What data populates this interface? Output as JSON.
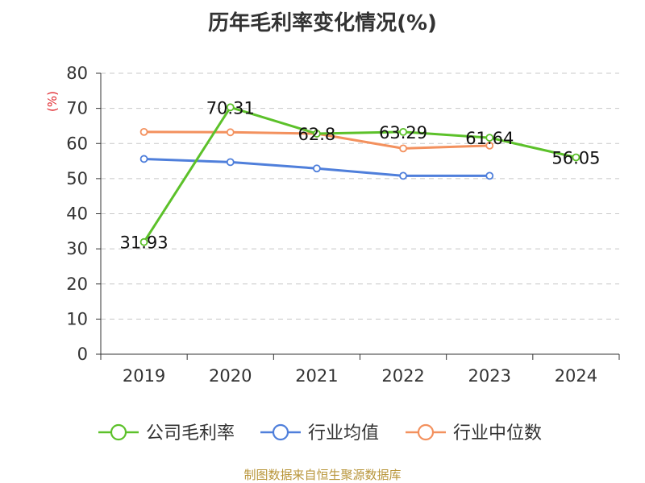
{
  "chart_data": {
    "type": "line",
    "title": "历年毛利率变化情况(%)",
    "ylabel": "(%)",
    "xlabel": "",
    "categories": [
      "2019",
      "2020",
      "2021",
      "2022",
      "2023",
      "2024"
    ],
    "ylim": [
      0,
      80
    ],
    "yticks": [
      0,
      10,
      20,
      30,
      40,
      50,
      60,
      70,
      80
    ],
    "grid": true,
    "legend_position": "bottom",
    "series": [
      {
        "name": "公司毛利率",
        "color": "#5cc12a",
        "values": [
          31.93,
          70.31,
          62.8,
          63.29,
          61.64,
          56.05
        ],
        "labels": [
          "31.93",
          "70.31",
          "62.8",
          "63.29",
          "61.64",
          "56.05"
        ]
      },
      {
        "name": "行业均值",
        "color": "#4f7fdb",
        "values": [
          55.6,
          54.7,
          52.9,
          50.8,
          50.8,
          null
        ]
      },
      {
        "name": "行业中位数",
        "color": "#f3915e",
        "values": [
          63.3,
          63.2,
          62.8,
          58.6,
          59.4,
          null
        ]
      }
    ]
  },
  "source": "制图数据来自恒生聚源数据库"
}
